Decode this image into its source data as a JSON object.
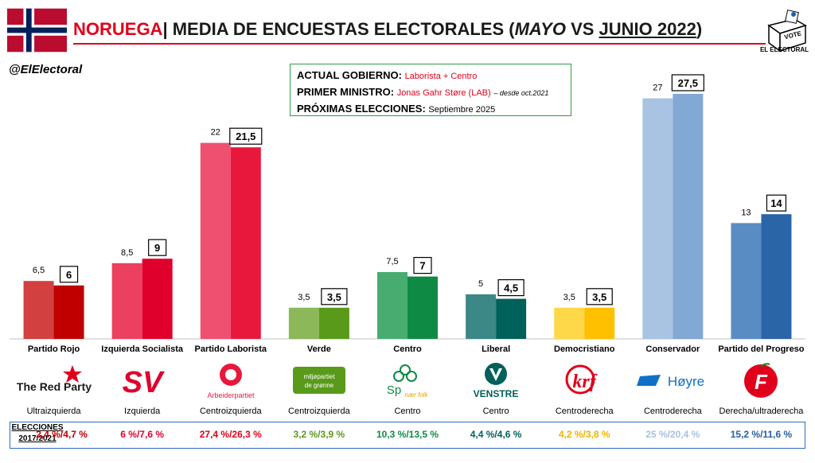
{
  "header": {
    "country": "NORUEGA",
    "separator": "|",
    "title_prefix": "MEDIA DE ENCUESTAS ELECTORALES (",
    "title_may": "MAYO",
    "title_vs": " VS ",
    "title_june": "JUNIO 2022",
    "title_suffix": ")"
  },
  "handle": "@ElElectoral",
  "logo": {
    "vote_text": "VOTE",
    "brand": "EL ELECTORAL"
  },
  "info": {
    "gov_label": "ACTUAL GOBIERNO:",
    "gov_value": "Laborista + Centro",
    "pm_label": "PRIMER MINISTRO:",
    "pm_value": "Jonas Gahr Støre (LAB)",
    "pm_note": "– desde oct.2021",
    "next_label": "PRÓXIMAS ELECCIONES:",
    "next_value": "Septiembre 2025"
  },
  "parties": [
    {
      "name": "Partido Rojo",
      "ideology": "Ultraizquierda",
      "logo_text": "The Red Party",
      "elections": "2,4 %/4,7 %",
      "color": "#c00000",
      "elections_color": "#c00000"
    },
    {
      "name": "Izquierda Socialista",
      "ideology": "Izquierda",
      "logo_text": "SV",
      "elections": "6 %/7,6 %",
      "color": "#e00030",
      "elections_color": "#e00030"
    },
    {
      "name": "Partido Laborista",
      "ideology": "Centroizquierda",
      "logo_text": "Arbeiderpartiet",
      "elections": "27,4 %/26,3 %",
      "color": "#e8183c",
      "elections_color": "#e0001b"
    },
    {
      "name": "Verde",
      "ideology": "Centroizquierda",
      "logo_text": "miljøpartiet de grønne",
      "elections": "3,2 %/3,9 %",
      "color": "#5a9a1a",
      "elections_color": "#5a9a1a"
    },
    {
      "name": "Centro",
      "ideology": "Centro",
      "logo_text": "Sp",
      "logo_subtext": "nær folk",
      "elections": "10,3 %/13,5 %",
      "color": "#0f8a45",
      "elections_color": "#0f8a45"
    },
    {
      "name": "Liberal",
      "ideology": "Centro",
      "logo_text": "VENSTRE",
      "elections": "4,4 %/4,6 %",
      "color": "#00605a",
      "elections_color": "#00605a"
    },
    {
      "name": "Democristiano",
      "ideology": "Centroderecha",
      "logo_text": "krf",
      "elections": "4,2 %/3,8 %",
      "color": "#ffc000",
      "elections_color": "#f0b400"
    },
    {
      "name": "Conservador",
      "ideology": "Centroderecha",
      "logo_text": "Høyre",
      "elections": "25 %/20,4 %",
      "color": "#8fb0d8",
      "elections_color": "#a8c0e0"
    },
    {
      "name": "Partido del Progreso",
      "ideology": "Derecha/ultraderecha",
      "logo_text": "F",
      "elections": "15,2 %/11,6 %",
      "color": "#2460a7",
      "elections_color": "#2460a7"
    }
  ],
  "elections_label_line1": "ELECCIONES",
  "elections_label_line2": "2017/2021",
  "chart_data": {
    "type": "bar",
    "categories": [
      "Partido Rojo",
      "Izquierda Socialista",
      "Partido Laborista",
      "Verde",
      "Centro",
      "Liberal",
      "Democristiano",
      "Conservador",
      "Partido del Progreso"
    ],
    "series": [
      {
        "name": "MAYO",
        "values": [
          6.5,
          8.5,
          22,
          3.5,
          7.5,
          5,
          3.5,
          27,
          13
        ],
        "labels": [
          "6,5",
          "8,5",
          "22",
          "3,5",
          "7,5",
          "5",
          "3,5",
          "27",
          "13"
        ]
      },
      {
        "name": "JUNIO 2022",
        "values": [
          6,
          9,
          21.5,
          3.5,
          7,
          4.5,
          3.5,
          27.5,
          14
        ],
        "labels": [
          "6",
          "9",
          "21,5",
          "3,5",
          "7",
          "4,5",
          "3,5",
          "27,5",
          "14"
        ]
      }
    ],
    "light_colors": [
      "#d24040",
      "#ec4060",
      "#f05070",
      "#8cb85a",
      "#48ac70",
      "#3c8886",
      "#ffd84a",
      "#a8c4e2",
      "#5a8cc4"
    ],
    "dark_colors": [
      "#c00000",
      "#e0002c",
      "#e8183c",
      "#5a9a1a",
      "#0f8a45",
      "#00605a",
      "#ffc000",
      "#82a8d4",
      "#2a65a8"
    ]
  }
}
